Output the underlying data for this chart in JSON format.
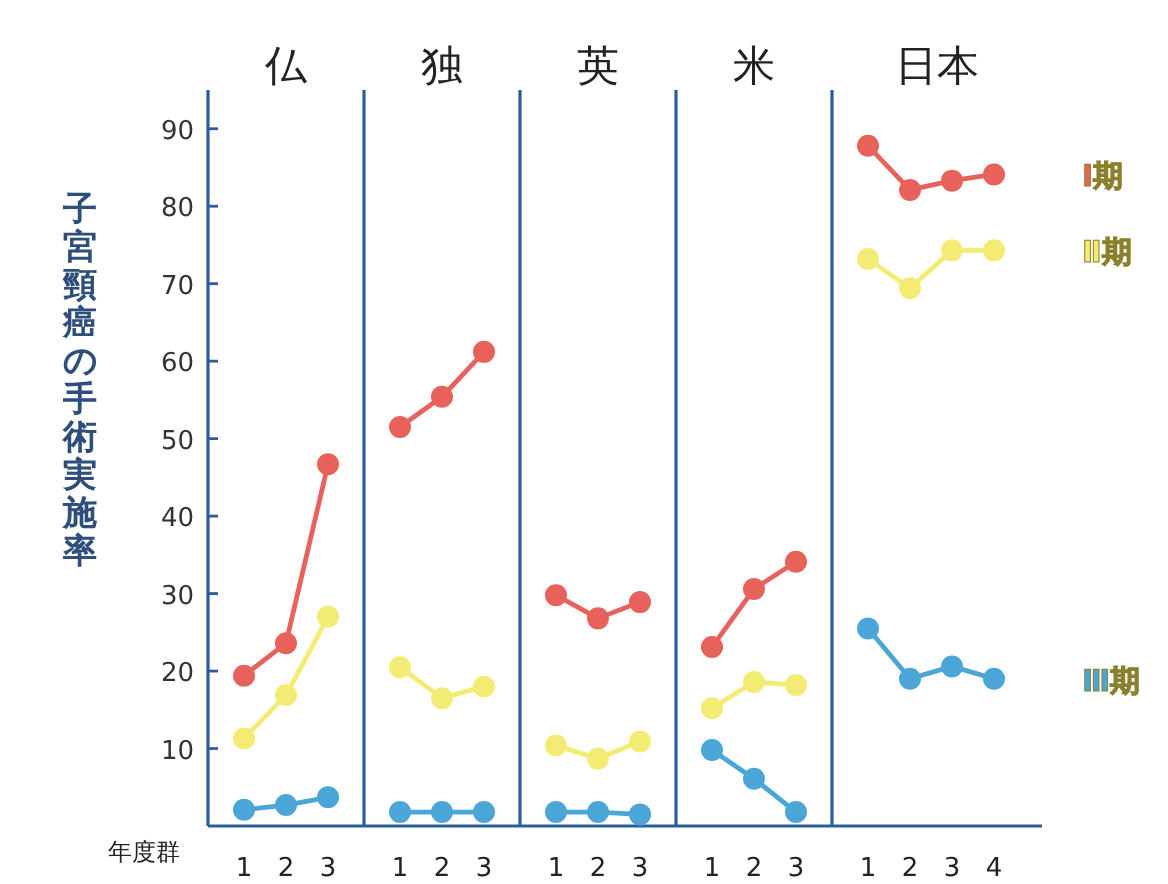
{
  "chart_data": [
    {
      "type": "line",
      "title": "仏",
      "ylabel": "子宮頸癌の手術実施率",
      "xlabel": "年度群",
      "categories": [
        "1",
        "2",
        "3"
      ],
      "ylim": [
        0,
        95
      ],
      "yticks": [
        10,
        20,
        30,
        40,
        50,
        60,
        70,
        80,
        90
      ],
      "marker": "circle",
      "series": [
        {
          "color": "#e8625c",
          "values": [
            19.4,
            23.6,
            46.7
          ]
        },
        {
          "color": "#f3ec74",
          "values": [
            11.3,
            16.9,
            27
          ]
        },
        {
          "color": "#4aa6d6",
          "values": [
            2.1,
            2.7,
            3.7
          ]
        }
      ]
    },
    {
      "type": "line",
      "title": "独",
      "categories": [
        "1",
        "2",
        "3"
      ],
      "ylim": [
        0,
        95
      ],
      "tick_labels": "x",
      "marker": "circle",
      "series": [
        {
          "color": "#e8625c",
          "values": [
            51.5,
            55.4,
            61.2
          ]
        },
        {
          "color": "#f3ec74",
          "values": [
            20.5,
            16.5,
            18
          ]
        },
        {
          "color": "#4aa6d6",
          "values": [
            1.8,
            1.8,
            1.8
          ]
        }
      ]
    },
    {
      "type": "line",
      "title": "英",
      "categories": [
        "1",
        "2",
        "3"
      ],
      "ylim": [
        0,
        95
      ],
      "tick_labels": "x",
      "marker": "circle",
      "series": [
        {
          "color": "#e8625c",
          "values": [
            29.8,
            26.8,
            28.9
          ]
        },
        {
          "color": "#f3ec74",
          "values": [
            10.4,
            8.7,
            10.9
          ]
        },
        {
          "color": "#4aa6d6",
          "values": [
            1.8,
            1.8,
            1.5
          ]
        }
      ]
    },
    {
      "type": "line",
      "title": "米",
      "categories": [
        "1",
        "2",
        "3"
      ],
      "ylim": [
        0,
        95
      ],
      "tick_labels": "x",
      "marker": "circle",
      "series": [
        {
          "color": "#e8625c",
          "values": [
            23.1,
            30.6,
            34.1
          ]
        },
        {
          "color": "#f3ec74",
          "values": [
            15.2,
            18.6,
            18.2
          ]
        },
        {
          "color": "#4aa6d6",
          "values": [
            9.8,
            6.1,
            1.8
          ]
        }
      ]
    },
    {
      "type": "line",
      "title": "日本",
      "categories": [
        "1",
        "2",
        "3",
        "4"
      ],
      "ylim": [
        0,
        95
      ],
      "tick_labels": "x",
      "marker": "circle",
      "series": [
        {
          "name": "Ⅰ期",
          "color": "#e8625c",
          "values": [
            87.8,
            82.1,
            83.3,
            84.1
          ]
        },
        {
          "name": "Ⅱ期",
          "color": "#f3ec74",
          "values": [
            73.2,
            69.4,
            74.3,
            74.3
          ]
        },
        {
          "name": "Ⅲ期",
          "color": "#4aa6d6",
          "values": [
            25.5,
            19,
            20.6,
            19
          ]
        }
      ]
    }
  ]
}
